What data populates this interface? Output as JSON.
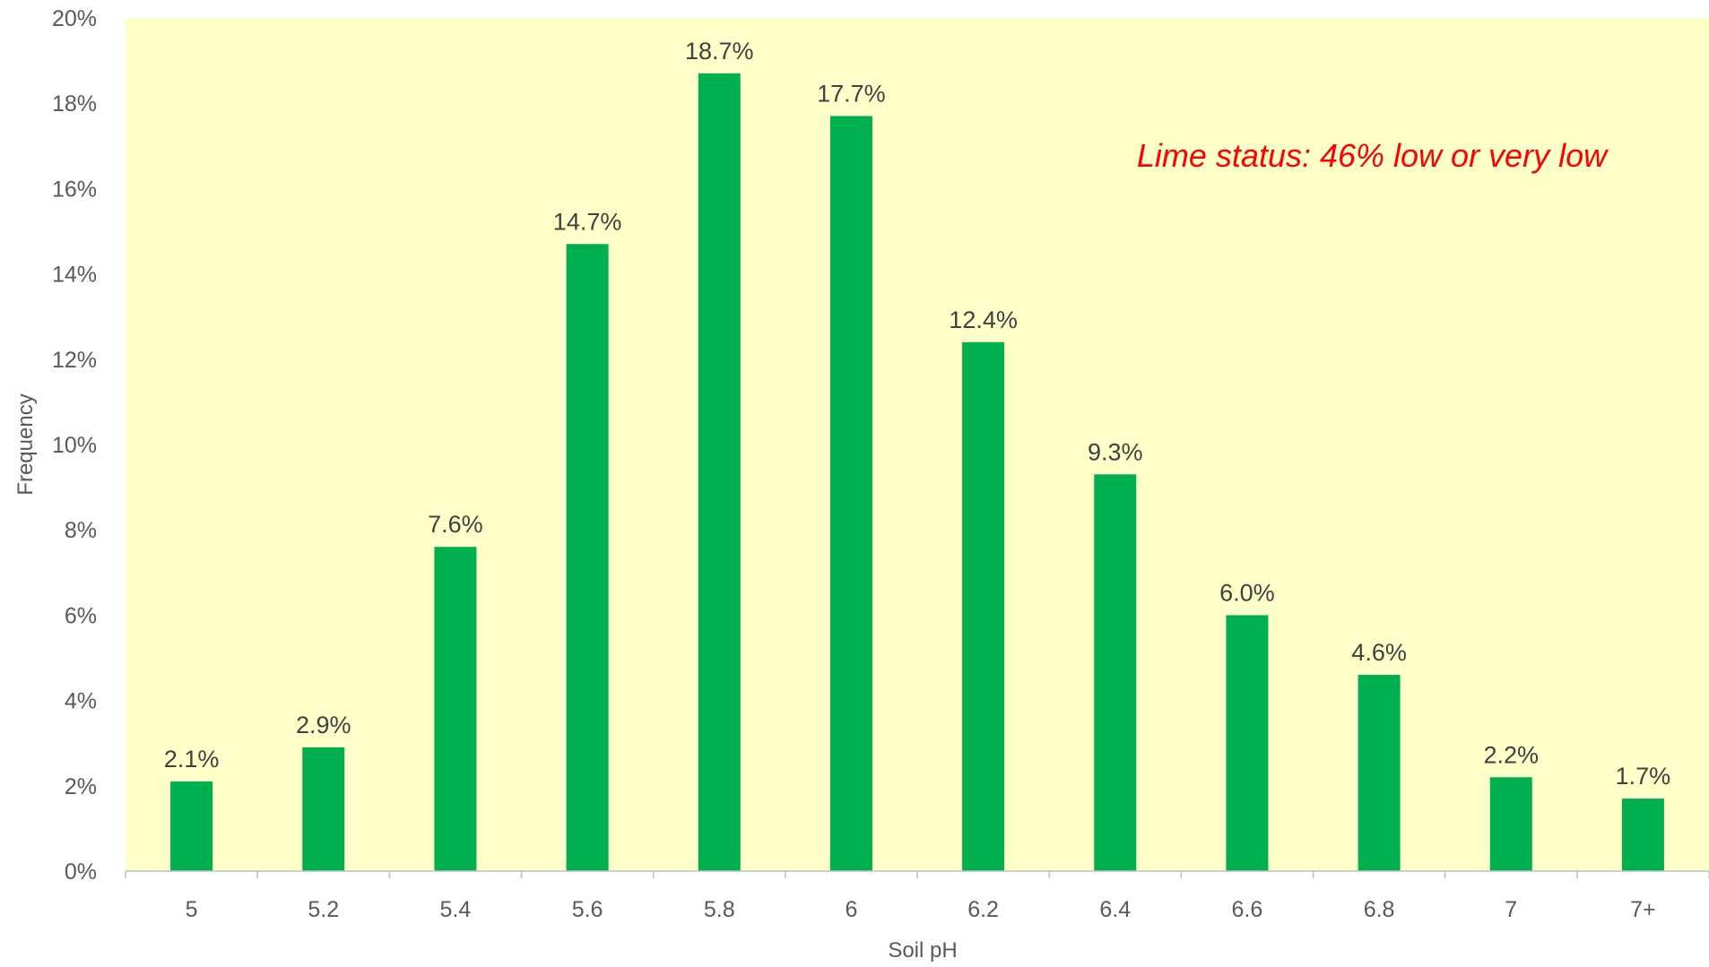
{
  "chart_data": {
    "type": "bar",
    "title": "",
    "xlabel": "Soil pH",
    "ylabel": "Frequency",
    "categories": [
      "5",
      "5.2",
      "5.4",
      "5.6",
      "5.8",
      "6",
      "6.2",
      "6.4",
      "6.6",
      "6.8",
      "7",
      "7+"
    ],
    "values": [
      2.1,
      2.9,
      7.6,
      14.7,
      18.7,
      17.7,
      12.4,
      9.3,
      6.0,
      4.6,
      2.2,
      1.7
    ],
    "value_labels": [
      "2.1%",
      "2.9%",
      "7.6%",
      "14.7%",
      "18.7%",
      "17.7%",
      "12.4%",
      "9.3%",
      "6.0%",
      "4.6%",
      "2.2%",
      "1.7%"
    ],
    "ylim": [
      0,
      20
    ],
    "y_ticks": [
      "0%",
      "2%",
      "4%",
      "6%",
      "8%",
      "10%",
      "12%",
      "14%",
      "16%",
      "18%",
      "20%"
    ],
    "y_tick_values": [
      0,
      2,
      4,
      6,
      8,
      10,
      12,
      14,
      16,
      18,
      20
    ],
    "annotation": "Lime status: 46% low or very low",
    "grid": false,
    "legend": "none",
    "colors": {
      "bar": "#00b050",
      "plot_background": "#ffffc9",
      "annotation": "#ff0000",
      "axis": "#bfbfbf"
    }
  }
}
